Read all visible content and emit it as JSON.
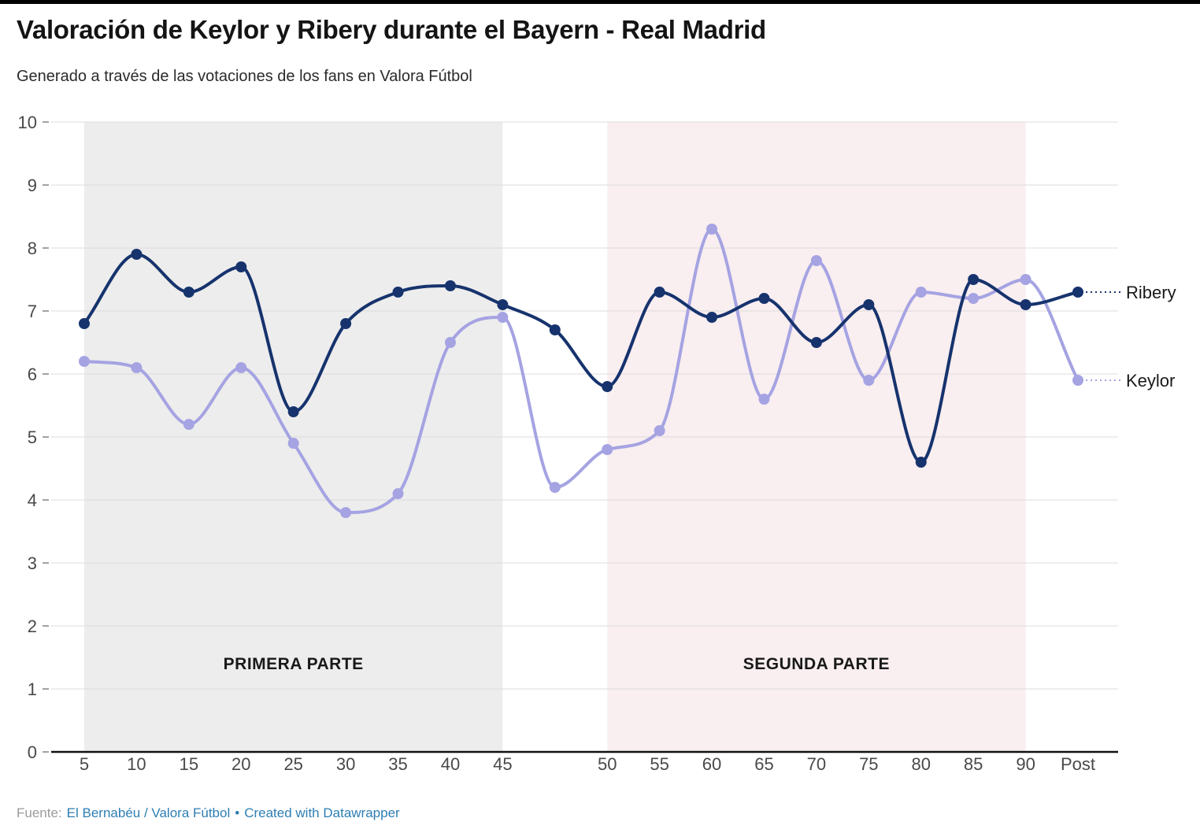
{
  "header": {
    "title": "Valoración de Keylor y Ribery durante el Bayern - Real Madrid",
    "subtitle": "Generado a través de las votaciones de los fans en Valora Fútbol"
  },
  "chart_data": {
    "type": "line",
    "x_labels": [
      "5",
      "10",
      "15",
      "20",
      "25",
      "30",
      "35",
      "40",
      "45",
      "",
      "50",
      "55",
      "60",
      "65",
      "70",
      "75",
      "80",
      "85",
      "90",
      "Post"
    ],
    "ylim": [
      0,
      10
    ],
    "yticks": [
      0,
      1,
      2,
      3,
      4,
      5,
      6,
      7,
      8,
      9,
      10
    ],
    "grid": true,
    "legend_position": "right-of-line-end",
    "series": [
      {
        "name": "Ribery",
        "color": "#16336d",
        "values": [
          6.8,
          7.9,
          7.3,
          7.7,
          5.4,
          6.8,
          7.3,
          7.4,
          7.1,
          6.7,
          5.8,
          7.3,
          6.9,
          7.2,
          6.5,
          7.1,
          4.6,
          7.5,
          7.1,
          7.3
        ]
      },
      {
        "name": "Keylor",
        "color": "#a5a3e2",
        "values": [
          6.2,
          6.1,
          5.2,
          6.1,
          4.9,
          3.8,
          4.1,
          6.5,
          6.9,
          4.2,
          4.8,
          5.1,
          8.3,
          5.6,
          7.8,
          5.9,
          7.3,
          7.2,
          7.5,
          5.9
        ]
      }
    ],
    "regions": [
      {
        "label": "PRIMERA PARTE",
        "from_index": 0,
        "to_index": 8,
        "color": "#ededed"
      },
      {
        "label": "SEGUNDA PARTE",
        "from_index": 10,
        "to_index": 18,
        "color": "#f9eef0"
      }
    ]
  },
  "footer": {
    "fuente_label": "Fuente:",
    "source_link": "El Bernabéu / Valora Fútbol",
    "separator": "•",
    "credit": "Created with Datawrapper",
    "link_color": "#2e7eb3"
  }
}
